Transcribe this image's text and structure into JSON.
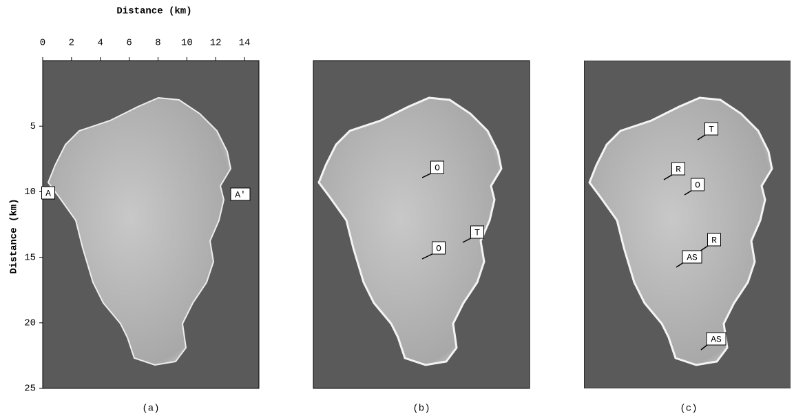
{
  "figure": {
    "x_axis": {
      "label": "Distance (km)",
      "ticks": [
        0,
        2,
        4,
        6,
        8,
        10,
        12,
        14
      ],
      "range": [
        0,
        15
      ]
    },
    "y_axis": {
      "label": "Distance (km)",
      "ticks": [
        5,
        10,
        15,
        20,
        25
      ],
      "range": [
        0,
        25
      ]
    },
    "panels": [
      {
        "label": "(a)",
        "annotations": [
          "A",
          "A'"
        ]
      },
      {
        "label": "(b)",
        "annotations": [
          "O",
          "T",
          "O"
        ]
      },
      {
        "label": "(c)",
        "annotations": [
          "T",
          "R",
          "O",
          "R",
          "AS",
          "AS"
        ]
      }
    ]
  }
}
